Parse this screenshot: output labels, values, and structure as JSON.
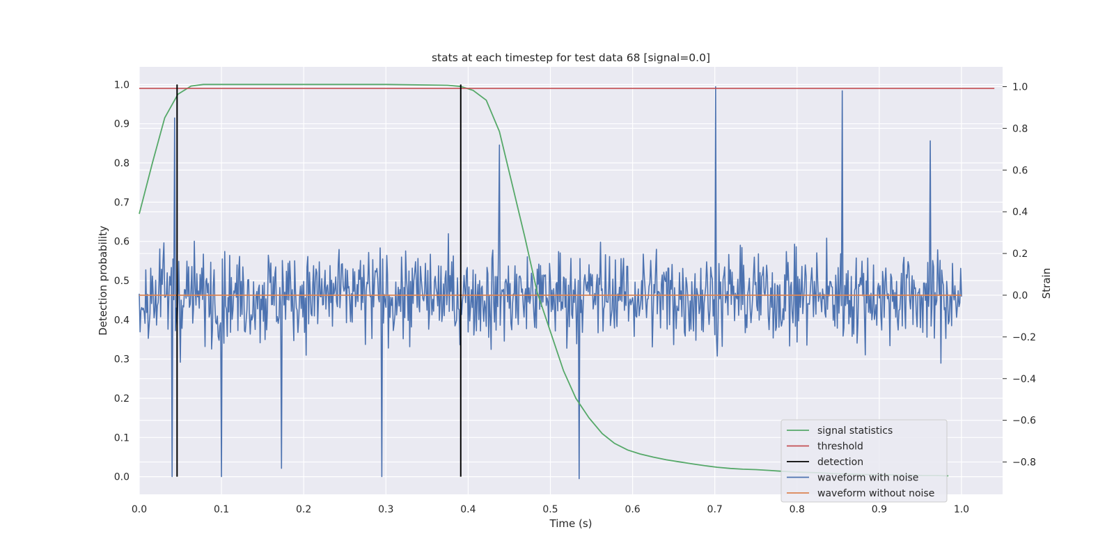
{
  "chart_data": {
    "type": "line",
    "title": "stats at each timestep for test data 68 [signal=0.0]",
    "xlabel": "Time (s)",
    "ylabel": "Detection probability",
    "y2label": "Strain",
    "xlim": [
      0.0,
      1.05
    ],
    "ylim": [
      -0.045,
      1.045
    ],
    "y2lim": [
      -0.955,
      1.095
    ],
    "xticks": [
      "0.0",
      "0.1",
      "0.2",
      "0.3",
      "0.4",
      "0.5",
      "0.6",
      "0.7",
      "0.8",
      "0.9",
      "1.0"
    ],
    "yticks": [
      "0.0",
      "0.1",
      "0.2",
      "0.3",
      "0.4",
      "0.5",
      "0.6",
      "0.7",
      "0.8",
      "0.9",
      "1.0"
    ],
    "y2ticks": [
      "−0.8",
      "−0.6",
      "−0.4",
      "−0.2",
      "0.0",
      "0.2",
      "0.4",
      "0.6",
      "0.8",
      "1.0"
    ],
    "grid": true,
    "legend_position": "bottom-right",
    "series": [
      {
        "name": "signal statistics",
        "axis": "left",
        "color": "#55a868",
        "x": [
          0.0,
          0.016,
          0.031,
          0.047,
          0.063,
          0.078,
          0.094,
          0.109,
          0.125,
          0.2,
          0.3,
          0.375,
          0.391,
          0.406,
          0.422,
          0.438,
          0.453,
          0.469,
          0.484,
          0.5,
          0.516,
          0.531,
          0.547,
          0.563,
          0.578,
          0.594,
          0.609,
          0.625,
          0.641,
          0.656,
          0.672,
          0.688,
          0.703,
          0.719,
          0.734,
          0.75,
          0.766,
          0.781,
          0.797,
          0.813,
          0.828,
          0.844,
          0.859,
          0.875,
          0.891,
          0.906,
          0.922,
          0.938,
          0.953,
          0.969,
          0.984
        ],
        "values": [
          0.67,
          0.8,
          0.915,
          0.975,
          0.996,
          1.0,
          1.0,
          1.0,
          1.0,
          1.0,
          1.0,
          0.998,
          0.995,
          0.985,
          0.96,
          0.88,
          0.75,
          0.61,
          0.47,
          0.37,
          0.27,
          0.2,
          0.15,
          0.11,
          0.085,
          0.068,
          0.058,
          0.05,
          0.043,
          0.038,
          0.033,
          0.028,
          0.024,
          0.021,
          0.019,
          0.018,
          0.016,
          0.014,
          0.012,
          0.011,
          0.01,
          0.008,
          0.007,
          0.006,
          0.005,
          0.005,
          0.004,
          0.004,
          0.003,
          0.003,
          0.002
        ]
      },
      {
        "name": "threshold",
        "axis": "left",
        "color": "#c44e52",
        "x": [
          0.0,
          1.04
        ],
        "values": [
          0.99,
          0.99
        ]
      },
      {
        "name": "detection",
        "axis": "left",
        "color": "#000000",
        "x": [
          0.046,
          0.391
        ],
        "range": [
          0.0,
          1.0
        ]
      },
      {
        "name": "waveform with noise",
        "axis": "right",
        "color": "#4c72b0",
        "note": "dense noise trace, approx. 1000 samples between 0.0 and 1.0 s",
        "peaks": [
          {
            "x": 0.701,
            "value": 1.0
          },
          {
            "x": 0.855,
            "value": 0.98
          },
          {
            "x": 0.962,
            "value": 0.74
          },
          {
            "x": 0.043,
            "value": 0.85
          },
          {
            "x": 0.438,
            "value": 0.72
          }
        ],
        "troughs": [
          {
            "x": 0.04,
            "value": -0.87
          },
          {
            "x": 0.1,
            "value": -0.87
          },
          {
            "x": 0.295,
            "value": -0.87
          },
          {
            "x": 0.535,
            "value": -0.88
          },
          {
            "x": 0.173,
            "value": -0.83
          }
        ],
        "typical_range": [
          -0.35,
          0.4
        ]
      },
      {
        "name": "waveform without noise",
        "axis": "right",
        "color": "#dd8452",
        "x": [
          0.0,
          1.0
        ],
        "values": [
          0.0,
          0.0
        ]
      }
    ]
  }
}
